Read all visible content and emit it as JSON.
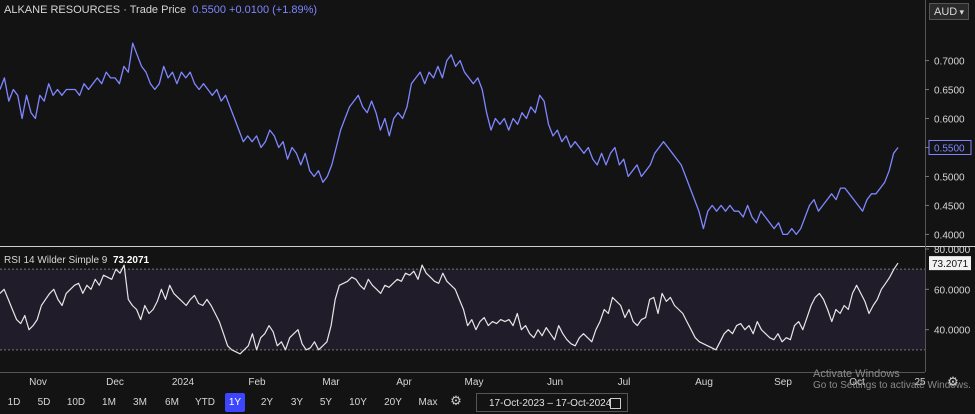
{
  "header": {
    "title": "ALKANE RESOURCES · Trade Price",
    "price": "0.5500",
    "change": "+0.0100 (+1.89%)",
    "currency": "AUD"
  },
  "rsi_header": {
    "label": "RSI 14 Wilder Simple 9",
    "value": "73.2071"
  },
  "colors": {
    "price_line": "#7f86ff",
    "rsi_line": "#e6e6e6",
    "rsi_band": "#201c2a",
    "background": "#131313",
    "active_button": "#3d46ff"
  },
  "time_buttons": [
    "1D",
    "5D",
    "10D",
    "1M",
    "3M",
    "6M",
    "YTD",
    "1Y",
    "2Y",
    "3Y",
    "5Y",
    "10Y",
    "20Y",
    "Max"
  ],
  "active_time_button": "1Y",
  "date_range": {
    "start": "17-Oct-2023",
    "separator": "–",
    "end": "17-Oct-2024"
  },
  "watermark": {
    "line1": "Activate Windows",
    "line2": "Go to Settings to activate Windows."
  },
  "chart_data": [
    {
      "type": "line",
      "x_ticks": [
        "Nov",
        "Dec",
        "2024",
        "Feb",
        "Mar",
        "Apr",
        "May",
        "Jun",
        "Jul",
        "Aug",
        "Sep",
        "Oct",
        "25"
      ],
      "y_ticks": [
        "0.7000",
        "0.6500",
        "0.6000",
        "0.5500",
        "0.5000",
        "0.4500",
        "0.4000"
      ],
      "ylim": [
        0.38,
        0.77
      ],
      "last_value_label": "0.5500",
      "series": [
        {
          "values": [
            0.65,
            0.67,
            0.63,
            0.65,
            0.64,
            0.6,
            0.64,
            0.61,
            0.6,
            0.64,
            0.63,
            0.66,
            0.64,
            0.65,
            0.64,
            0.65,
            0.65,
            0.65,
            0.64,
            0.66,
            0.65,
            0.66,
            0.67,
            0.66,
            0.68,
            0.67,
            0.67,
            0.66,
            0.69,
            0.68,
            0.73,
            0.71,
            0.69,
            0.68,
            0.66,
            0.65,
            0.66,
            0.69,
            0.67,
            0.68,
            0.66,
            0.68,
            0.67,
            0.68,
            0.66,
            0.65,
            0.66,
            0.65,
            0.64,
            0.65,
            0.63,
            0.64,
            0.62,
            0.6,
            0.58,
            0.56,
            0.57,
            0.56,
            0.57,
            0.55,
            0.56,
            0.58,
            0.57,
            0.55,
            0.56,
            0.53,
            0.55,
            0.54,
            0.52,
            0.54,
            0.51,
            0.5,
            0.51,
            0.49,
            0.5,
            0.52,
            0.55,
            0.58,
            0.6,
            0.62,
            0.63,
            0.64,
            0.62,
            0.61,
            0.63,
            0.61,
            0.58,
            0.6,
            0.57,
            0.6,
            0.61,
            0.6,
            0.62,
            0.66,
            0.67,
            0.68,
            0.66,
            0.68,
            0.67,
            0.69,
            0.67,
            0.7,
            0.71,
            0.69,
            0.7,
            0.68,
            0.67,
            0.66,
            0.67,
            0.65,
            0.61,
            0.58,
            0.6,
            0.59,
            0.6,
            0.58,
            0.6,
            0.59,
            0.61,
            0.6,
            0.62,
            0.61,
            0.64,
            0.63,
            0.59,
            0.57,
            0.58,
            0.56,
            0.57,
            0.55,
            0.56,
            0.55,
            0.54,
            0.55,
            0.53,
            0.52,
            0.54,
            0.52,
            0.54,
            0.55,
            0.52,
            0.53,
            0.5,
            0.51,
            0.52,
            0.5,
            0.51,
            0.52,
            0.54,
            0.55,
            0.56,
            0.55,
            0.54,
            0.53,
            0.52,
            0.5,
            0.48,
            0.46,
            0.44,
            0.41,
            0.44,
            0.45,
            0.44,
            0.45,
            0.44,
            0.45,
            0.44,
            0.44,
            0.43,
            0.45,
            0.43,
            0.42,
            0.44,
            0.43,
            0.42,
            0.41,
            0.42,
            0.4,
            0.4,
            0.41,
            0.4,
            0.41,
            0.43,
            0.45,
            0.46,
            0.44,
            0.45,
            0.46,
            0.47,
            0.46,
            0.48,
            0.48,
            0.47,
            0.46,
            0.45,
            0.44,
            0.46,
            0.47,
            0.47,
            0.48,
            0.49,
            0.51,
            0.54,
            0.55
          ]
        }
      ]
    },
    {
      "type": "line",
      "title": "RSI 14 Wilder Simple 9",
      "y_ticks": [
        "80.0000",
        "60.0000",
        "40.0000"
      ],
      "ylim": [
        19,
        81
      ],
      "band": [
        30,
        70
      ],
      "last_value_label": "73.2071",
      "series": [
        {
          "values": [
            58,
            60,
            55,
            50,
            45,
            43,
            47,
            40,
            42,
            45,
            52,
            55,
            58,
            60,
            55,
            52,
            58,
            60,
            62,
            63,
            58,
            62,
            60,
            65,
            62,
            67,
            66,
            65,
            70,
            68,
            72,
            55,
            52,
            50,
            45,
            52,
            48,
            50,
            54,
            60,
            55,
            62,
            58,
            56,
            54,
            52,
            55,
            57,
            53,
            52,
            55,
            52,
            48,
            44,
            38,
            32,
            30,
            29,
            28,
            30,
            32,
            38,
            30,
            36,
            38,
            42,
            39,
            32,
            34,
            30,
            36,
            38,
            40,
            33,
            30,
            31,
            34,
            30,
            32,
            34,
            42,
            55,
            62,
            63,
            64,
            66,
            65,
            62,
            60,
            65,
            62,
            60,
            58,
            62,
            61,
            63,
            65,
            64,
            68,
            67,
            69,
            65,
            72,
            68,
            66,
            64,
            63,
            68,
            64,
            62,
            60,
            55,
            50,
            42,
            45,
            40,
            44,
            46,
            42,
            44,
            43,
            45,
            44,
            45,
            42,
            48,
            40,
            42,
            38,
            36,
            40,
            37,
            41,
            38,
            35,
            42,
            38,
            35,
            33,
            32,
            36,
            38,
            36,
            34,
            40,
            44,
            50,
            48,
            56,
            54,
            52,
            46,
            50,
            44,
            42,
            45,
            46,
            55,
            56,
            48,
            58,
            54,
            56,
            52,
            50,
            48,
            44,
            40,
            36,
            34,
            33,
            32,
            31,
            30,
            34,
            38,
            40,
            38,
            42,
            43,
            40,
            42,
            38,
            44,
            40,
            38,
            36,
            35,
            38,
            34,
            36,
            35,
            42,
            44,
            40,
            46,
            52,
            56,
            58,
            55,
            50,
            44,
            50,
            48,
            52,
            50,
            58,
            62,
            58,
            54,
            48,
            52,
            55,
            60,
            63,
            66,
            70,
            73
          ]
        }
      ]
    }
  ]
}
